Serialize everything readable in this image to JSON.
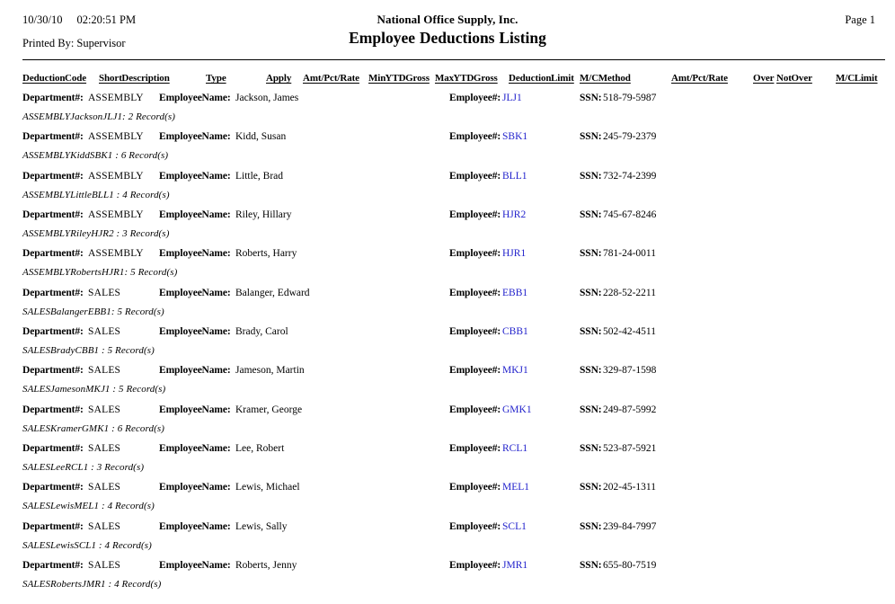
{
  "page": {
    "date": "10/30/10",
    "time": "02:20:51 PM",
    "printed_by_label": "Printed By:",
    "printed_by": "Supervisor",
    "company": "National Office Supply, Inc.",
    "title": "Employee Deductions Listing",
    "page_number": "Page 1"
  },
  "colors": {
    "link": "#2222cc",
    "text": "#000000"
  },
  "table": {
    "columns": [
      "Deduction Code",
      "Short Description",
      "Type",
      "Apply",
      "Amt/Pct/Rate",
      "Min YTD Gross",
      "Max YTD Gross",
      "Deduction Limit",
      "M/C Method",
      "Amt/Pct/Rate",
      "Over",
      "Not Over",
      "M/C Limit"
    ]
  },
  "labels": {
    "department": "Department#:",
    "employee_name": "Employee Name:",
    "employee_number": "Employee#:",
    "ssn": "SSN:"
  },
  "rows": [
    {
      "department": "ASSEMBLY",
      "employee_name": "Jackson, James",
      "employee_number": "JLJ1",
      "ssn": "518-79-5987",
      "summary": "ASSEMBLYJacksonJLJ1: 2 Record(s)"
    },
    {
      "department": "ASSEMBLY",
      "employee_name": "Kidd, Susan",
      "employee_number": "SBK1",
      "ssn": "245-79-2379",
      "summary": "ASSEMBLYKiddSBK1 : 6 Record(s)"
    },
    {
      "department": "ASSEMBLY",
      "employee_name": "Little, Brad",
      "employee_number": "BLL1",
      "ssn": "732-74-2399",
      "summary": "ASSEMBLYLittleBLL1 : 4 Record(s)"
    },
    {
      "department": "ASSEMBLY",
      "employee_name": "Riley, Hillary",
      "employee_number": "HJR2",
      "ssn": "745-67-8246",
      "summary": "ASSEMBLYRileyHJR2 : 3 Record(s)"
    },
    {
      "department": "ASSEMBLY",
      "employee_name": "Roberts, Harry",
      "employee_number": "HJR1",
      "ssn": "781-24-0011",
      "summary": "ASSEMBLYRobertsHJR1: 5 Record(s)"
    },
    {
      "department": "SALES",
      "employee_name": "Balanger, Edward",
      "employee_number": "EBB1",
      "ssn": "228-52-2211",
      "summary": "SALESBalangerEBB1: 5 Record(s)"
    },
    {
      "department": "SALES",
      "employee_name": "Brady, Carol",
      "employee_number": "CBB1",
      "ssn": "502-42-4511",
      "summary": "SALESBradyCBB1 : 5 Record(s)"
    },
    {
      "department": "SALES",
      "employee_name": "Jameson, Martin",
      "employee_number": "MKJ1",
      "ssn": "329-87-1598",
      "summary": "SALESJamesonMKJ1 : 5 Record(s)"
    },
    {
      "department": "SALES",
      "employee_name": "Kramer, George",
      "employee_number": "GMK1",
      "ssn": "249-87-5992",
      "summary": "SALESKramerGMK1 : 6 Record(s)"
    },
    {
      "department": "SALES",
      "employee_name": "Lee, Robert",
      "employee_number": "RCL1",
      "ssn": "523-87-5921",
      "summary": "SALESLeeRCL1 : 3 Record(s)"
    },
    {
      "department": "SALES",
      "employee_name": "Lewis, Michael",
      "employee_number": "MEL1",
      "ssn": "202-45-1311",
      "summary": "SALESLewisMEL1 : 4 Record(s)"
    },
    {
      "department": "SALES",
      "employee_name": "Lewis, Sally",
      "employee_number": "SCL1",
      "ssn": "239-84-7997",
      "summary": "SALESLewisSCL1 : 4 Record(s)"
    },
    {
      "department": "SALES",
      "employee_name": "Roberts, Jenny",
      "employee_number": "JMR1",
      "ssn": "655-80-7519",
      "summary": "SALESRobertsJMR1 : 4 Record(s)"
    }
  ]
}
